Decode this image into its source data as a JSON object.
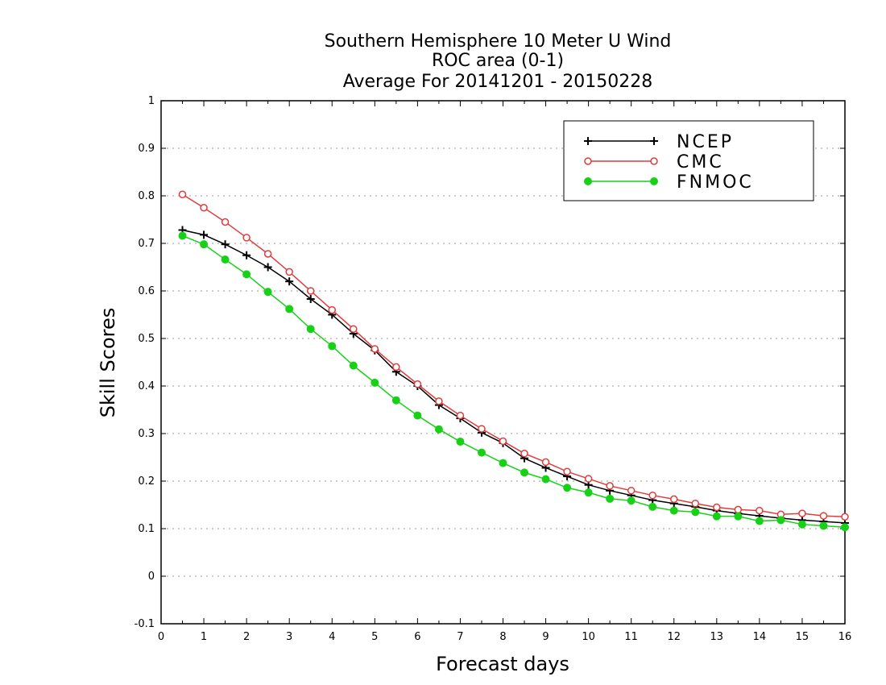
{
  "chart_data": {
    "type": "line",
    "title_lines": [
      "Southern Hemisphere 10 Meter U Wind",
      "ROC area (0-1)",
      "Average For 20141201 - 20150228"
    ],
    "xlabel": "Forecast days",
    "ylabel": "Skill Scores",
    "xlim": [
      0,
      16
    ],
    "ylim": [
      -0.1,
      1
    ],
    "x_ticks": [
      0,
      1,
      2,
      3,
      4,
      5,
      6,
      7,
      8,
      9,
      10,
      11,
      12,
      13,
      14,
      15,
      16
    ],
    "y_ticks": [
      -0.1,
      0,
      0.1,
      0.2,
      0.3,
      0.4,
      0.5,
      0.6,
      0.7,
      0.8,
      0.9,
      1
    ],
    "y_tick_labels": [
      "-0.1",
      "0",
      "0.1",
      "0.2",
      "0.3",
      "0.4",
      "0.5",
      "0.6",
      "0.7",
      "0.8",
      "0.9",
      "1"
    ],
    "grid": "horizontal-dotted",
    "legend_position": "top-right",
    "x": [
      0.5,
      1,
      1.5,
      2,
      2.5,
      3,
      3.5,
      4,
      4.5,
      5,
      5.5,
      6,
      6.5,
      7,
      7.5,
      8,
      8.5,
      9,
      9.5,
      10,
      10.5,
      11,
      11.5,
      12,
      12.5,
      13,
      13.5,
      14,
      14.5,
      15,
      15.5,
      16
    ],
    "series": [
      {
        "name": "NCEP",
        "color": "#000000",
        "marker": "plus",
        "values": [
          0.728,
          0.718,
          0.698,
          0.675,
          0.65,
          0.62,
          0.583,
          0.55,
          0.51,
          0.475,
          0.43,
          0.4,
          0.36,
          0.332,
          0.302,
          0.28,
          0.248,
          0.228,
          0.21,
          0.192,
          0.18,
          0.17,
          0.16,
          0.153,
          0.146,
          0.138,
          0.132,
          0.127,
          0.122,
          0.118,
          0.115,
          0.112
        ]
      },
      {
        "name": "CMC",
        "color": "#e03c3c",
        "marker": "open-circle",
        "values": [
          0.803,
          0.775,
          0.745,
          0.712,
          0.678,
          0.64,
          0.6,
          0.56,
          0.52,
          0.478,
          0.44,
          0.404,
          0.368,
          0.338,
          0.31,
          0.284,
          0.258,
          0.24,
          0.22,
          0.205,
          0.19,
          0.18,
          0.17,
          0.162,
          0.153,
          0.145,
          0.14,
          0.138,
          0.13,
          0.132,
          0.127,
          0.125
        ]
      },
      {
        "name": "FNMOC",
        "color": "#17d117",
        "marker": "filled-circle",
        "values": [
          0.716,
          0.698,
          0.666,
          0.635,
          0.598,
          0.562,
          0.52,
          0.484,
          0.443,
          0.407,
          0.37,
          0.338,
          0.309,
          0.283,
          0.26,
          0.238,
          0.218,
          0.204,
          0.186,
          0.176,
          0.163,
          0.159,
          0.146,
          0.138,
          0.135,
          0.126,
          0.126,
          0.116,
          0.118,
          0.109,
          0.106,
          0.103
        ]
      }
    ]
  }
}
